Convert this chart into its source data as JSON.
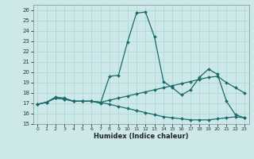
{
  "xlabel": "Humidex (Indice chaleur)",
  "bg_color": "#cce8e8",
  "line_color": "#1a6b6b",
  "grid_color": "#b0d8d8",
  "xlim": [
    -0.5,
    23.5
  ],
  "ylim": [
    15,
    26.5
  ],
  "yticks": [
    15,
    16,
    17,
    18,
    19,
    20,
    21,
    22,
    23,
    24,
    25,
    26
  ],
  "xticks": [
    0,
    1,
    2,
    3,
    4,
    5,
    6,
    7,
    8,
    9,
    10,
    11,
    12,
    13,
    14,
    15,
    16,
    17,
    18,
    19,
    20,
    21,
    22,
    23
  ],
  "line1_x": [
    0,
    1,
    2,
    3,
    4,
    5,
    6,
    7,
    8,
    9,
    10,
    11,
    12,
    13,
    14,
    15,
    16,
    17,
    18,
    19,
    20,
    21,
    22,
    23
  ],
  "line1_y": [
    16.9,
    17.1,
    17.6,
    17.5,
    17.2,
    17.2,
    17.2,
    17.0,
    19.6,
    19.7,
    22.9,
    25.7,
    25.8,
    23.4,
    19.1,
    18.5,
    17.8,
    18.3,
    19.5,
    20.3,
    19.8,
    17.2,
    15.9,
    15.6
  ],
  "line2_x": [
    0,
    1,
    2,
    3,
    4,
    5,
    6,
    7,
    8,
    9,
    10,
    11,
    12,
    13,
    14,
    15,
    16,
    17,
    18,
    19,
    20,
    21,
    22,
    23
  ],
  "line2_y": [
    16.9,
    17.1,
    17.5,
    17.4,
    17.2,
    17.2,
    17.2,
    17.1,
    17.3,
    17.5,
    17.7,
    17.9,
    18.1,
    18.3,
    18.5,
    18.7,
    18.9,
    19.1,
    19.3,
    19.5,
    19.6,
    19.0,
    18.5,
    18.0
  ],
  "line3_x": [
    0,
    1,
    2,
    3,
    4,
    5,
    6,
    7,
    8,
    9,
    10,
    11,
    12,
    13,
    14,
    15,
    16,
    17,
    18,
    19,
    20,
    21,
    22,
    23
  ],
  "line3_y": [
    16.9,
    17.1,
    17.5,
    17.4,
    17.2,
    17.2,
    17.2,
    17.1,
    16.9,
    16.7,
    16.5,
    16.3,
    16.1,
    15.9,
    15.7,
    15.6,
    15.5,
    15.4,
    15.4,
    15.4,
    15.5,
    15.6,
    15.7,
    15.6
  ]
}
